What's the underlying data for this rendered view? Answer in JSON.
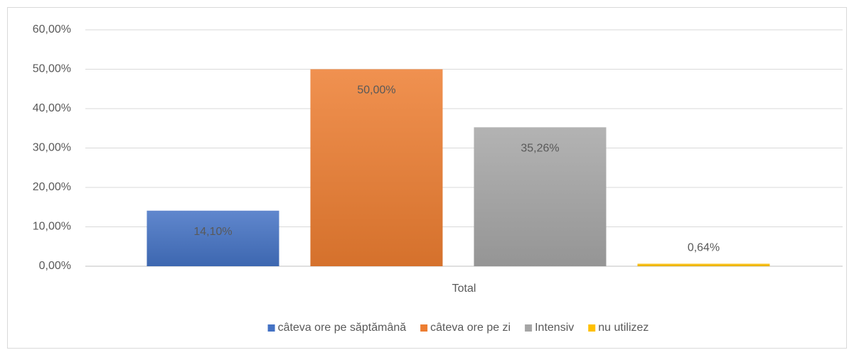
{
  "chart_data": {
    "type": "bar",
    "categories": [
      "Total"
    ],
    "series": [
      {
        "name": "câteva ore pe săptămână",
        "color": "#4472c4",
        "values": [
          14.1
        ],
        "value_labels": [
          "14,10%"
        ]
      },
      {
        "name": "câteva ore pe zi",
        "color": "#ed7d31",
        "values": [
          50.0
        ],
        "value_labels": [
          "50,00%"
        ]
      },
      {
        "name": "Intensiv",
        "color": "#a5a5a5",
        "values": [
          35.26
        ],
        "value_labels": [
          "35,26%"
        ]
      },
      {
        "name": "nu utilizez",
        "color": "#ffc000",
        "values": [
          0.64
        ],
        "value_labels": [
          "0,64%"
        ]
      }
    ],
    "ylim": [
      0,
      60
    ],
    "yticks": [
      {
        "value": 0,
        "label": "0,00%"
      },
      {
        "value": 10,
        "label": "10,00%"
      },
      {
        "value": 20,
        "label": "20,00%"
      },
      {
        "value": 30,
        "label": "30,00%"
      },
      {
        "value": 40,
        "label": "40,00%"
      },
      {
        "value": 50,
        "label": "50,00%"
      },
      {
        "value": 60,
        "label": "60,00%"
      }
    ],
    "grid": true,
    "legend": "bottom"
  }
}
